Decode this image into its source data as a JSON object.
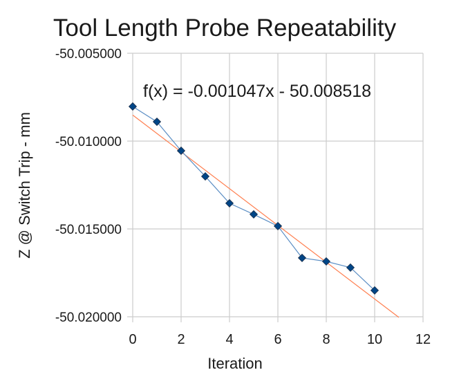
{
  "chart_data": {
    "type": "scatter",
    "title": "Tool Length Probe Repeatability",
    "xlabel": "Iteration",
    "ylabel": "Z @ Switch Trip - mm",
    "xlim": [
      0,
      12
    ],
    "ylim": [
      -50.02,
      -50.005
    ],
    "x_ticks": [
      0,
      2,
      4,
      6,
      8,
      10,
      12
    ],
    "x_tick_labels": [
      "0",
      "2",
      "4",
      "6",
      "8",
      "10",
      "12"
    ],
    "y_ticks": [
      -50.005,
      -50.01,
      -50.015,
      -50.02
    ],
    "y_tick_labels": [
      "-50.005000",
      "-50.010000",
      "-50.015000",
      "-50.020000"
    ],
    "grid": true,
    "legend": null,
    "series": [
      {
        "name": "Z @ Switch Trip",
        "marker": "diamond",
        "line": true,
        "color": "#004586",
        "line_color": "#5b8ec4",
        "x": [
          0,
          1,
          2,
          3,
          4,
          5,
          6,
          7,
          8,
          9,
          10
        ],
        "values": [
          -50.00803,
          -50.0089,
          -50.01055,
          -50.01201,
          -50.01354,
          -50.01417,
          -50.01484,
          -50.01665,
          -50.01685,
          -50.0172,
          -50.0185
        ]
      }
    ],
    "trendline": {
      "type": "linear",
      "slope": -0.001047,
      "intercept": -50.008518,
      "x_range": [
        0,
        11
      ],
      "color": "#ff7f50",
      "equation_label": "f(x) = -0.001047x - 50.008518"
    }
  }
}
